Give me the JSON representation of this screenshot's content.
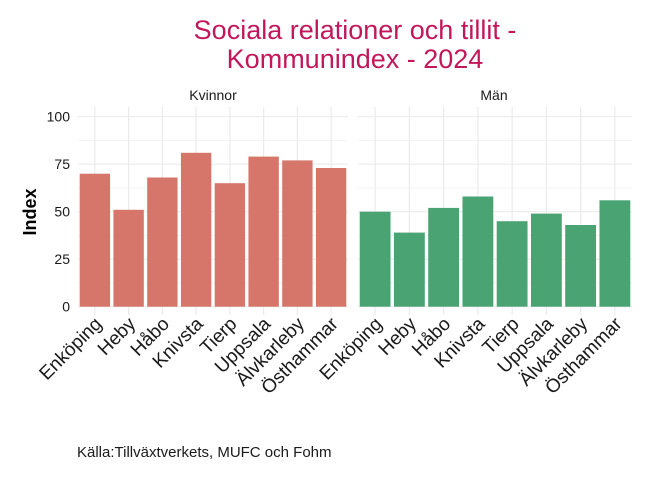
{
  "chart_data": {
    "type": "bar",
    "title_lines": [
      "Sociala relationer och tillit -",
      "Kommunindex - 2024"
    ],
    "xlabel": "",
    "ylabel": "Index",
    "ylim": [
      0,
      100
    ],
    "yticks": [
      0,
      25,
      50,
      75,
      100
    ],
    "grid": true,
    "categories": [
      "Enköping",
      "Heby",
      "Håbo",
      "Knivsta",
      "Tierp",
      "Uppsala",
      "Älvkarleby",
      "Östhammar"
    ],
    "facets": [
      {
        "name": "Kvinnor",
        "color": "#d6766a",
        "values": [
          70,
          51,
          68,
          81,
          65,
          79,
          77,
          73
        ]
      },
      {
        "name": "Män",
        "color": "#4aa373",
        "values": [
          50,
          39,
          52,
          58,
          45,
          49,
          43,
          56
        ]
      }
    ],
    "caption": "Källa:Tillväxtverkets, MUFC och Fohm",
    "title_color": "#c2185b"
  }
}
